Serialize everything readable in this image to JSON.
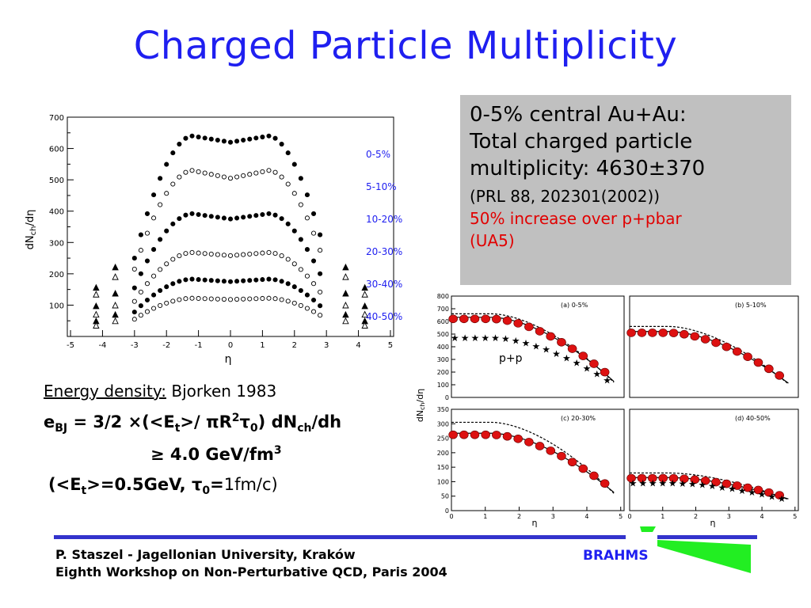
{
  "slide_title": "Charged Particle Multiplicity",
  "main_plot": {
    "ylabel": "dN",
    "ylabel_sub": "ch",
    "ylabel_tail": "/dη",
    "xlabel": "η",
    "x_ticks": [
      "-5",
      "-4",
      "-3",
      "-2",
      "-1",
      "0",
      "1",
      "2",
      "3",
      "4",
      "5"
    ],
    "y_ticks": [
      "100",
      "200",
      "300",
      "400",
      "500",
      "600",
      "700"
    ],
    "legend": [
      "0-5%",
      "5-10%",
      "10-20%",
      "20-30%",
      "30-40%",
      "40-50%"
    ],
    "legend_color": "#1f1ff0"
  },
  "info_box": {
    "line1": "0-5% central Au+Au:",
    "line2": "Total charged particle",
    "line3": "multiplicity: 4630±370",
    "line4": "(PRL 88, 202301(2002))",
    "line5": "50% increase over p+pbar",
    "line6": "(UA5)",
    "highlight_color": "#e10000"
  },
  "energy": {
    "heading": "Energy density:",
    "heading_tail": " Bjorken 1983",
    "formula_main": "e",
    "formula_sub": "BJ",
    "formula_rest1": " = 3/2 ×(<E",
    "formula_sub2": "t",
    "formula_rest2": ">/ πR",
    "formula_sup": "2",
    "formula_rest3": "τ",
    "formula_sub3": "0",
    "formula_rest4": ") dN",
    "formula_sub4": "ch",
    "formula_rest5": "/dh",
    "result": "≥ 4.0 GeV/fm",
    "result_sup": "3",
    "assump1": "(<E",
    "assump_sub": "t",
    "assump2": ">=0.5GeV, τ",
    "assump_sub2": "0",
    "assump3": "=",
    "assump4": "1fm/c)"
  },
  "panels": {
    "ylabel": "dN",
    "ylabel_sub": "ch",
    "ylabel_tail": "/dη",
    "xlabel": "η",
    "pp_label": "p+p",
    "top_y_ticks": [
      "0",
      "100",
      "200",
      "300",
      "400",
      "500",
      "600",
      "700",
      "800"
    ],
    "bottom_y_ticks": [
      "0",
      "50",
      "100",
      "150",
      "200",
      "250",
      "300",
      "350"
    ],
    "x_ticks": [
      "0",
      "1",
      "2",
      "3",
      "4",
      "5"
    ],
    "labels": [
      "(a)  0-5%",
      "(b)  5-10%",
      "(c)  20-30%",
      "(d)  40-50%"
    ]
  },
  "footer": {
    "line1": "P. Staszel - Jagellonian University, Kraków",
    "line2": "Eighth Workshop on Non-Perturbative QCD, Paris 2004",
    "brand": "BRAHMS"
  }
}
